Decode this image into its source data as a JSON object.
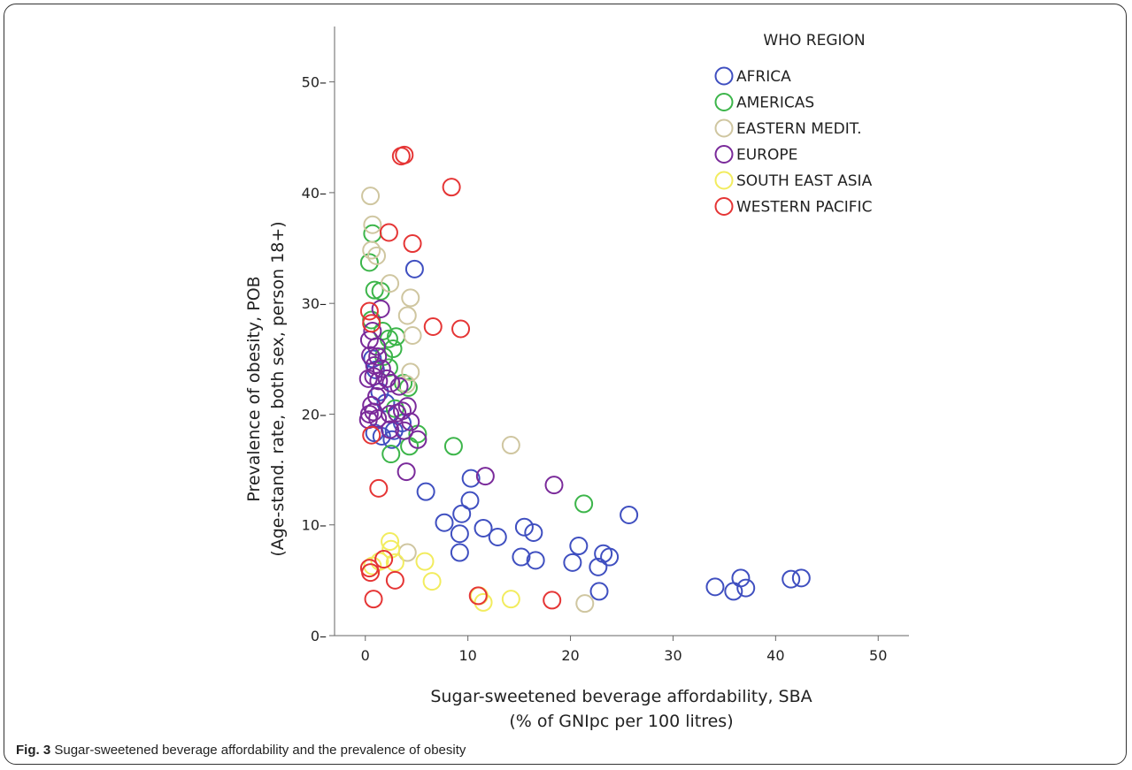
{
  "caption": {
    "label": "Fig. 3",
    "text": "Sugar-sweetened beverage affordability and the prevalence of obesity"
  },
  "chart_data": {
    "type": "scatter",
    "xlabel_lines": [
      "Sugar-sweetened beverage affordability, SBA",
      "(% of GNIpc per 100 litres)"
    ],
    "ylabel_lines": [
      "Prevalence of obesity, POB",
      "(Age-stand. rate, both sex, person 18+)"
    ],
    "xlim": [
      -3,
      53
    ],
    "ylim": [
      0,
      55
    ],
    "xticks": [
      0,
      10,
      20,
      30,
      40,
      50
    ],
    "yticks": [
      0,
      10,
      20,
      30,
      40,
      50
    ],
    "grid": false,
    "marker": "open-circle",
    "legend": {
      "title": "WHO REGION",
      "placement": "top-right"
    },
    "series": [
      {
        "name": "AFRICA",
        "color": "#3f4fc0",
        "points": [
          [
            4.8,
            33.1
          ],
          [
            0.7,
            25
          ],
          [
            1,
            24
          ],
          [
            1.4,
            22
          ],
          [
            2,
            21
          ],
          [
            0.9,
            18.3
          ],
          [
            1.6,
            18
          ],
          [
            2.6,
            17.7
          ],
          [
            2.8,
            18.5
          ],
          [
            3.6,
            19.2
          ],
          [
            5.9,
            13
          ],
          [
            10.3,
            14.2
          ],
          [
            7.7,
            10.2
          ],
          [
            9.4,
            11
          ],
          [
            10.2,
            12.2
          ],
          [
            9.2,
            9.2
          ],
          [
            9.2,
            7.5
          ],
          [
            11.5,
            9.7
          ],
          [
            12.9,
            8.9
          ],
          [
            15.5,
            9.8
          ],
          [
            16.4,
            9.3
          ],
          [
            15.2,
            7.1
          ],
          [
            16.6,
            6.8
          ],
          [
            20.2,
            6.6
          ],
          [
            20.8,
            8.1
          ],
          [
            22.7,
            6.2
          ],
          [
            23.2,
            7.4
          ],
          [
            23.8,
            7.1
          ],
          [
            22.8,
            4
          ],
          [
            25.7,
            10.9
          ],
          [
            34.1,
            4.4
          ],
          [
            35.9,
            4
          ],
          [
            36.6,
            5.2
          ],
          [
            37.1,
            4.3
          ],
          [
            41.5,
            5.1
          ],
          [
            42.5,
            5.2
          ]
        ]
      },
      {
        "name": "AMERICAS",
        "color": "#3cb54a",
        "points": [
          [
            0.7,
            36.3
          ],
          [
            0.4,
            33.7
          ],
          [
            0.9,
            31.2
          ],
          [
            1.5,
            31.1
          ],
          [
            0.6,
            28.5
          ],
          [
            1.7,
            27.5
          ],
          [
            2.3,
            26.8
          ],
          [
            3,
            27
          ],
          [
            2.7,
            25.9
          ],
          [
            1.8,
            25.2
          ],
          [
            2.3,
            24.2
          ],
          [
            3.7,
            22.8
          ],
          [
            4.2,
            22.4
          ],
          [
            2.9,
            20.5
          ],
          [
            4.3,
            17.1
          ],
          [
            5.1,
            18.2
          ],
          [
            2.5,
            16.4
          ],
          [
            8.6,
            17.1
          ],
          [
            21.3,
            11.9
          ]
        ]
      },
      {
        "name": "EASTERN MEDIT.",
        "color": "#cfc6a0",
        "points": [
          [
            0.5,
            39.7
          ],
          [
            0.7,
            37.1
          ],
          [
            0.6,
            34.8
          ],
          [
            1.1,
            34.3
          ],
          [
            2.4,
            31.8
          ],
          [
            4.4,
            30.5
          ],
          [
            4.1,
            28.9
          ],
          [
            4.6,
            27.1
          ],
          [
            4.4,
            23.8
          ],
          [
            4,
            22.7
          ],
          [
            4.1,
            7.5
          ],
          [
            14.2,
            17.2
          ],
          [
            21.4,
            2.9
          ]
        ]
      },
      {
        "name": "EUROPE",
        "color": "#7a2a9a",
        "points": [
          [
            1.5,
            29.5
          ],
          [
            0.7,
            27.5
          ],
          [
            0.4,
            26.7
          ],
          [
            1.1,
            26.1
          ],
          [
            0.5,
            25.3
          ],
          [
            1.2,
            25.2
          ],
          [
            0.9,
            24.4
          ],
          [
            1.6,
            24.1
          ],
          [
            0.3,
            23.2
          ],
          [
            0.8,
            23.4
          ],
          [
            1.3,
            23
          ],
          [
            2.1,
            23.2
          ],
          [
            2.5,
            22.8
          ],
          [
            3.3,
            22.5
          ],
          [
            1.1,
            21.6
          ],
          [
            0.6,
            20.8
          ],
          [
            0.8,
            20.2
          ],
          [
            0.4,
            20
          ],
          [
            0.3,
            19.5
          ],
          [
            1.2,
            19.6
          ],
          [
            2.4,
            20
          ],
          [
            3.1,
            20.1
          ],
          [
            3.6,
            20.3
          ],
          [
            4.1,
            20.7
          ],
          [
            4.4,
            19.3
          ],
          [
            3.8,
            18.5
          ],
          [
            2.4,
            18.6
          ],
          [
            5.1,
            17.7
          ],
          [
            4,
            14.8
          ],
          [
            11.7,
            14.4
          ],
          [
            18.4,
            13.6
          ]
        ]
      },
      {
        "name": "SOUTH EAST ASIA",
        "color": "#f2ec5e",
        "points": [
          [
            2.4,
            8.5
          ],
          [
            2.5,
            7.8
          ],
          [
            2.9,
            6.6
          ],
          [
            1.4,
            6.7
          ],
          [
            0.7,
            6.3
          ],
          [
            5.8,
            6.7
          ],
          [
            6.5,
            4.9
          ],
          [
            11.1,
            3.6
          ],
          [
            11.5,
            3
          ],
          [
            14.2,
            3.3
          ]
        ]
      },
      {
        "name": "WESTERN PACIFIC",
        "color": "#e53535",
        "points": [
          [
            3.5,
            43.3
          ],
          [
            3.8,
            43.4
          ],
          [
            8.4,
            40.5
          ],
          [
            2.3,
            36.4
          ],
          [
            4.6,
            35.4
          ],
          [
            6.6,
            27.9
          ],
          [
            9.3,
            27.7
          ],
          [
            0.4,
            29.3
          ],
          [
            0.6,
            28.2
          ],
          [
            0.6,
            18.1
          ],
          [
            1.3,
            13.3
          ],
          [
            1.8,
            6.9
          ],
          [
            0.4,
            6.1
          ],
          [
            0.5,
            5.7
          ],
          [
            2.9,
            5
          ],
          [
            0.8,
            3.3
          ],
          [
            11,
            3.6
          ],
          [
            18.2,
            3.2
          ]
        ]
      }
    ]
  }
}
